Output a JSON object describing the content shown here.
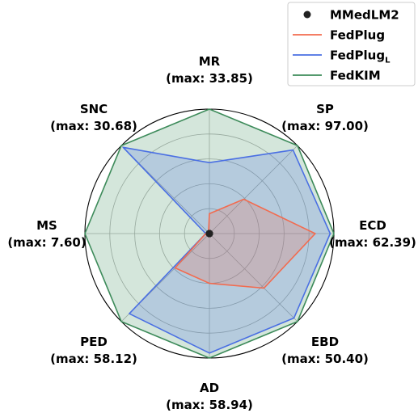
{
  "chart_data": {
    "type": "radar",
    "axes": [
      {
        "name": "MR",
        "max_label": "(max: 33.85)"
      },
      {
        "name": "SP",
        "max_label": "(max: 97.00)"
      },
      {
        "name": "ECD",
        "max_label": "(max: 62.39)"
      },
      {
        "name": "EBD",
        "max_label": "(max: 50.40)"
      },
      {
        "name": "AD",
        "max_label": "(max: 58.94)"
      },
      {
        "name": "PED",
        "max_label": "(max: 58.12)"
      },
      {
        "name": "MS",
        "max_label": "(max: 7.60)"
      },
      {
        "name": "SNC",
        "max_label": "(max: 30.68)"
      }
    ],
    "rlim": [
      0,
      1
    ],
    "grid": true,
    "legend_position": "top-right",
    "series": [
      {
        "name": "MMedLM2",
        "color": "#222222",
        "marker": "dot",
        "values": [
          0,
          0,
          0,
          0,
          0,
          0,
          0,
          0
        ]
      },
      {
        "name": "FedPlug",
        "color": "#f26b4f",
        "values": [
          0.16,
          0.39,
          0.85,
          0.62,
          0.4,
          0.39,
          0.03,
          0.01
        ]
      },
      {
        "name": "FedPlug",
        "name_subscript": "L",
        "color": "#4a6fe3",
        "values": [
          0.57,
          0.95,
          0.97,
          0.96,
          0.96,
          0.91,
          0.03,
          0.98
        ]
      },
      {
        "name": "FedKIM",
        "color": "#3d8b5a",
        "values": [
          1.0,
          1.0,
          1.0,
          1.0,
          1.0,
          1.0,
          1.0,
          1.0
        ]
      }
    ]
  }
}
